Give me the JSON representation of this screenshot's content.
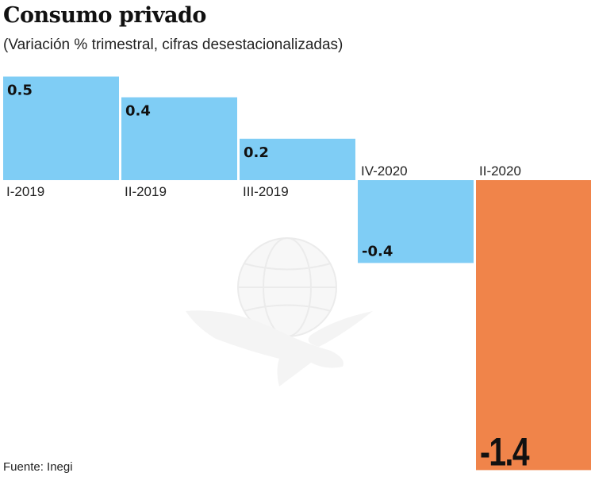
{
  "header": {
    "title": "Consumo privado",
    "subtitle": "(Variación % trimestral, cifras desestacionalizadas)"
  },
  "footer": {
    "source": "Fuente: Inegi"
  },
  "watermark": {
    "icon": "eagle-globe-watermark-icon"
  },
  "colors": {
    "positive": "#7fcdf5",
    "negative": "#7fcdf5",
    "highlight": "#f0844a",
    "text": "#111111"
  },
  "chart_data": {
    "type": "bar",
    "title": "Consumo privado",
    "subtitle": "(Variación % trimestral, cifras desestacionalizadas)",
    "xlabel": "",
    "ylabel": "Variación % trimestral",
    "categories": [
      "I-2019",
      "II-2019",
      "III-2019",
      "IV-2020",
      "II-2020"
    ],
    "values": [
      0.5,
      0.4,
      0.2,
      -0.4,
      -1.4
    ],
    "data_labels": [
      "0.5",
      "0.4",
      "0.2",
      "-0.4",
      "-1.4"
    ],
    "highlight_index": 4,
    "ylim": [
      -1.4,
      0.5
    ],
    "grid": false,
    "legend": "none",
    "source": "Fuente: Inegi"
  }
}
